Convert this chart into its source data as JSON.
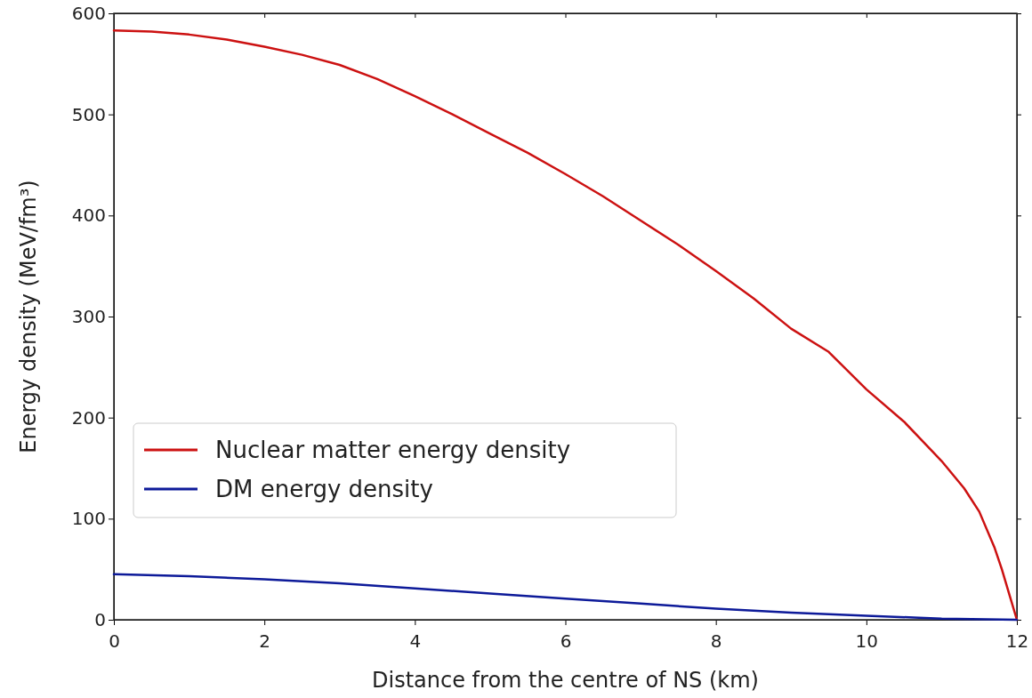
{
  "chart_data": {
    "type": "line",
    "xlabel": "Distance from the centre of NS (km)",
    "ylabel": "Energy density (MeV/fm³)",
    "xlim": [
      0,
      12
    ],
    "xticks": [
      0,
      2,
      4,
      6,
      8,
      10,
      12
    ],
    "ylim": [
      0,
      600
    ],
    "yticks": [
      0,
      100,
      200,
      300,
      400,
      500,
      600
    ],
    "grid": false,
    "legend": "left",
    "line_style": "solid",
    "marker": "none",
    "series": [
      {
        "name": "Nuclear matter energy density",
        "color": "#cc1111",
        "x": [
          0,
          0.5,
          1,
          1.5,
          2,
          2.5,
          3,
          3.5,
          4,
          4.5,
          5,
          5.5,
          6,
          6.5,
          7,
          7.5,
          8,
          8.5,
          9,
          9.5,
          10,
          10.5,
          11,
          11.3,
          11.5,
          11.7,
          11.8,
          11.9,
          12
        ],
        "values": [
          583,
          582,
          579,
          574,
          567,
          559,
          549,
          535,
          518,
          500,
          481,
          462,
          441,
          419,
          395,
          371,
          345,
          318,
          288,
          265,
          228,
          196,
          157,
          130,
          107,
          72,
          50,
          25,
          0
        ]
      },
      {
        "name": "DM energy density",
        "color": "#0d1a99",
        "x": [
          0,
          1,
          2,
          3,
          4,
          5,
          6,
          7,
          8,
          9,
          10,
          10.7,
          11,
          12
        ],
        "values": [
          45,
          43,
          40,
          36,
          31,
          26,
          21,
          16,
          11,
          7,
          4,
          2,
          1,
          0
        ]
      }
    ]
  }
}
